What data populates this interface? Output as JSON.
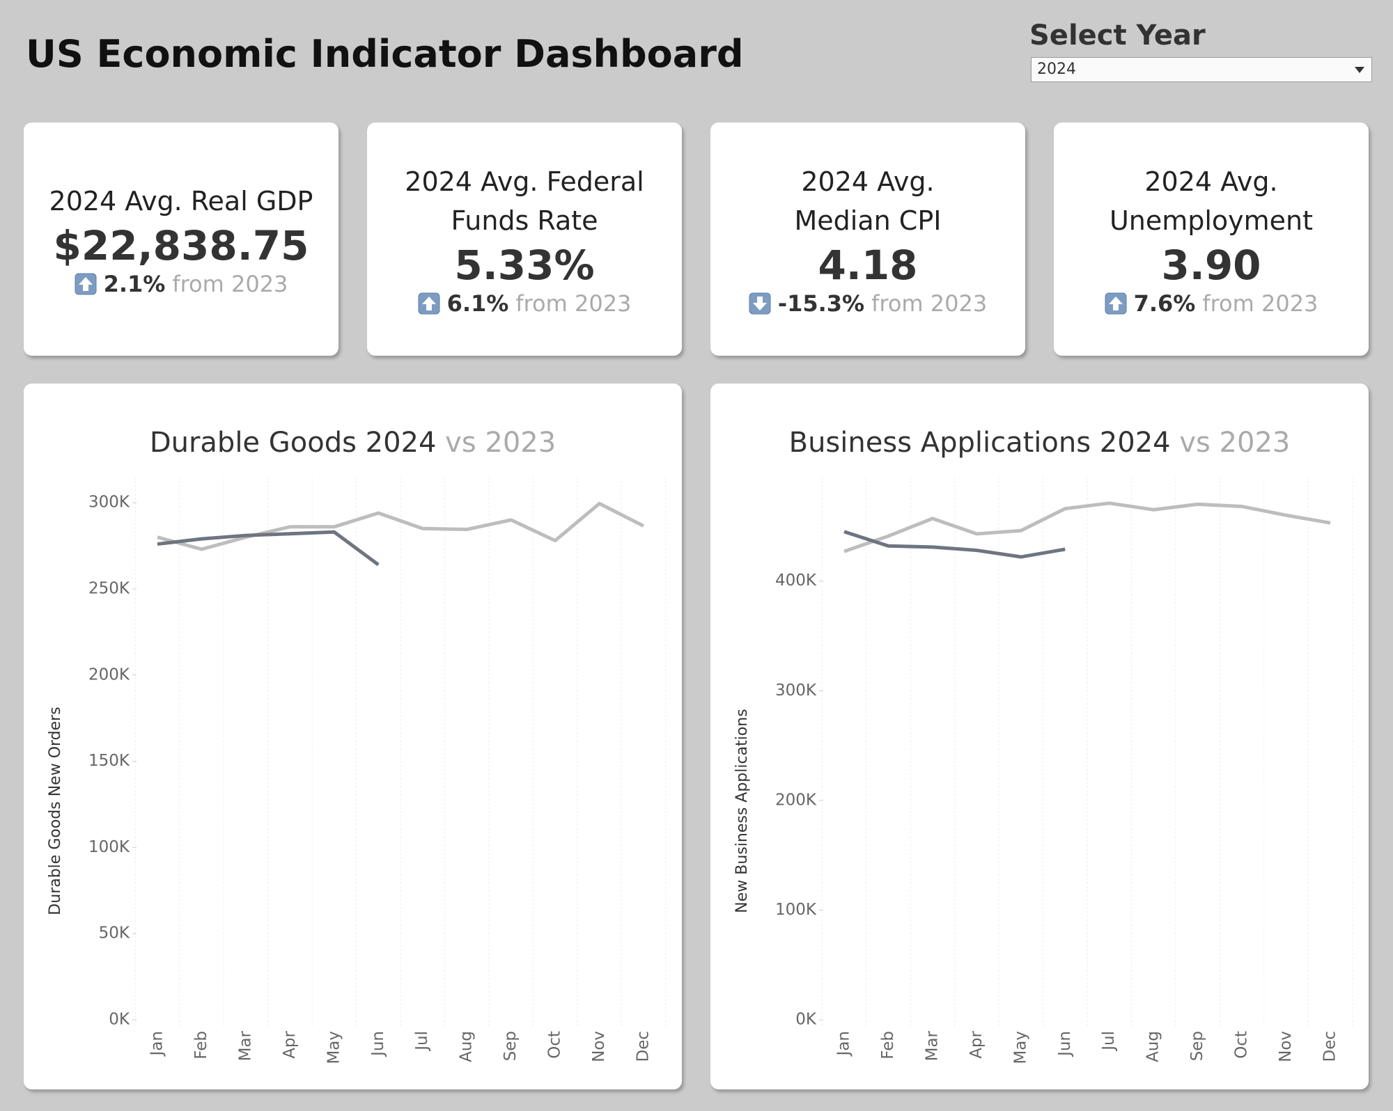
{
  "header": {
    "title": "US Economic Indicator Dashboard"
  },
  "filter": {
    "label": "Select Year",
    "value": "2024"
  },
  "kpis": [
    {
      "title": "2024 Avg. Real GDP",
      "value": "$22,838.75",
      "direction": "up",
      "change": "2.1%",
      "comparison": "from 2023"
    },
    {
      "title": "2024 Avg. Federal Funds Rate",
      "value": "5.33%",
      "direction": "up",
      "change": "6.1%",
      "comparison": "from 2023"
    },
    {
      "title": "2024 Avg. Median CPI",
      "value": "4.18",
      "direction": "down",
      "change": "-15.3%",
      "comparison": "from 2023"
    },
    {
      "title": "2024 Avg. Unemployment",
      "value": "3.90",
      "direction": "up",
      "change": "7.6%",
      "comparison": "from 2023"
    }
  ],
  "chart_data": [
    {
      "type": "line",
      "title": "Durable Goods 2024",
      "title_comparison": "vs 2023",
      "y_label": "Durable Goods New Orders",
      "categories": [
        "Jan",
        "Feb",
        "Mar",
        "Apr",
        "May",
        "Jun",
        "Jul",
        "Aug",
        "Sep",
        "Oct",
        "Nov",
        "Dec"
      ],
      "ylim": [
        0,
        315000
      ],
      "yticks": [
        {
          "value": 0,
          "label": "0K"
        },
        {
          "value": 50000,
          "label": "50K"
        },
        {
          "value": 100000,
          "label": "100K"
        },
        {
          "value": 150000,
          "label": "150K"
        },
        {
          "value": 200000,
          "label": "200K"
        },
        {
          "value": 250000,
          "label": "250K"
        },
        {
          "value": 300000,
          "label": "300K"
        }
      ],
      "grid": true,
      "series": [
        {
          "color": "#bdbdbd",
          "values": [
            280000,
            273000,
            280000,
            286000,
            286000,
            294000,
            285000,
            284500,
            290000,
            278000,
            299500,
            286500
          ]
        },
        {
          "color": "#6e7480",
          "values": [
            276000,
            279000,
            281000,
            282000,
            283000,
            264000,
            null,
            null,
            null,
            null,
            null,
            null
          ]
        }
      ]
    },
    {
      "type": "line",
      "title": "Business Applications 2024",
      "title_comparison": "vs 2023",
      "y_label": "New Business Applications",
      "categories": [
        "Jan",
        "Feb",
        "Mar",
        "Apr",
        "May",
        "Jun",
        "Jul",
        "Aug",
        "Sep",
        "Oct",
        "Nov",
        "Dec"
      ],
      "ylim": [
        0,
        495000
      ],
      "yticks": [
        {
          "value": 0,
          "label": "0K"
        },
        {
          "value": 100000,
          "label": "100K"
        },
        {
          "value": 200000,
          "label": "200K"
        },
        {
          "value": 300000,
          "label": "300K"
        },
        {
          "value": 400000,
          "label": "400K"
        }
      ],
      "grid": true,
      "series": [
        {
          "color": "#bdbdbd",
          "values": [
            427000,
            441000,
            457000,
            443000,
            446000,
            466000,
            471000,
            465000,
            470000,
            468000,
            460000,
            453000
          ]
        },
        {
          "color": "#6e7480",
          "values": [
            445000,
            432000,
            431000,
            428000,
            422000,
            429000,
            null,
            null,
            null,
            null,
            null,
            null
          ]
        }
      ]
    }
  ]
}
